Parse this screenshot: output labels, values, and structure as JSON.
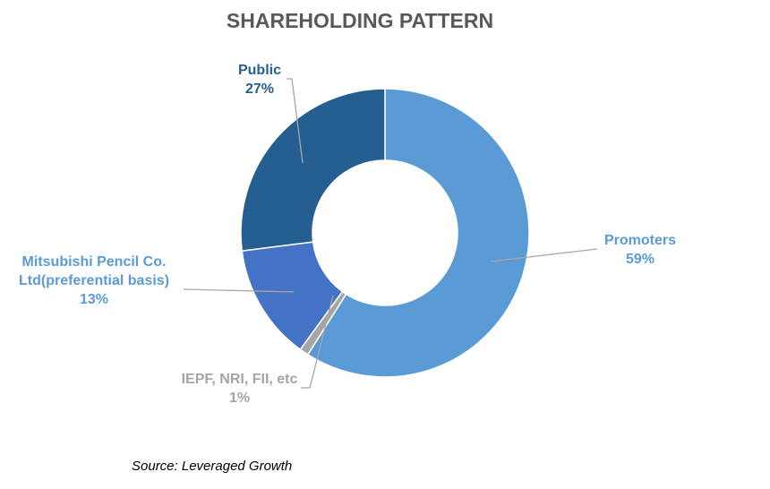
{
  "chart_data": {
    "type": "pie",
    "donut": true,
    "title": "SHAREHOLDING PATTERN",
    "categories": [
      "Promoters",
      "IEPF, NRI, FII, etc",
      "Mitsubishi Pencil Co. Ltd(preferential basis)",
      "Public"
    ],
    "values": [
      59,
      1,
      13,
      27
    ],
    "value_labels": [
      "59%",
      "1%",
      "13%",
      "27%"
    ],
    "colors": [
      "#5b9bd5",
      "#a5a5a5",
      "#4472c4",
      "#255e91"
    ],
    "label_colors": [
      "#5b9bd5",
      "#a5a5a5",
      "#5b9bd5",
      "#255e91"
    ],
    "source": "Source: Leveraged Growth"
  }
}
